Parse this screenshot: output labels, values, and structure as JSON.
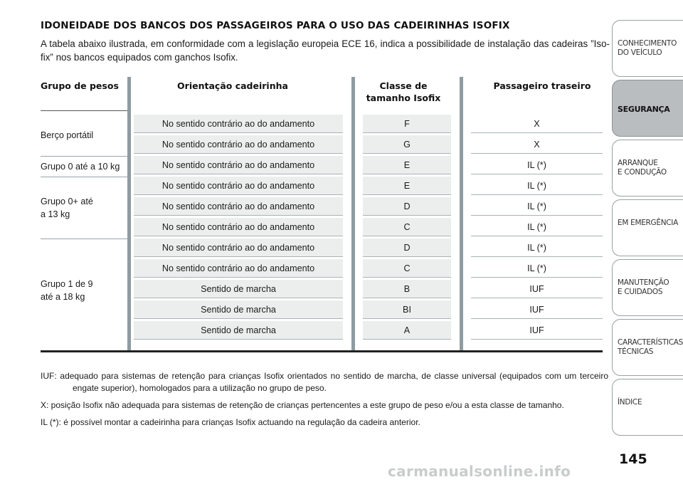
{
  "title": "IDONEIDADE DOS BANCOS DOS PASSAGEIROS PARA O USO DAS CADEIRINHAS ISOFIX",
  "intro": "A tabela abaixo ilustrada, em conformidade com a legislação europeia ECE 16, indica a possibilidade de instalação das cadeiras ”Iso-fix” nos bancos equipados com ganchos Isofix.",
  "table": {
    "headers": {
      "group": "Grupo de pesos",
      "orientation": "Orientação cadeirinha",
      "size_class": "Classe de tamanho Isofix",
      "rear_passenger": "Passageiro traseiro"
    },
    "groups": [
      "Berço portátil",
      "Grupo 0 até a 10 kg",
      "Grupo 0+ até a 13 kg",
      "Grupo 1 de 9 até a 18 kg"
    ],
    "rows": [
      {
        "orientation": "No sentido contrário ao do andamento",
        "size_class": "F",
        "rear": "X"
      },
      {
        "orientation": "No sentido contrário ao do andamento",
        "size_class": "G",
        "rear": "X"
      },
      {
        "orientation": "No sentido contrário ao do andamento",
        "size_class": "E",
        "rear": "IL (*)"
      },
      {
        "orientation": "No sentido contrário ao do andamento",
        "size_class": "E",
        "rear": "IL (*)"
      },
      {
        "orientation": "No sentido contrário ao do andamento",
        "size_class": "D",
        "rear": "IL (*)"
      },
      {
        "orientation": "No sentido contrário ao do andamento",
        "size_class": "C",
        "rear": "IL (*)"
      },
      {
        "orientation": "No sentido contrário ao do andamento",
        "size_class": "D",
        "rear": "IL (*)"
      },
      {
        "orientation": "No sentido contrário ao do andamento",
        "size_class": "C",
        "rear": "IL (*)"
      },
      {
        "orientation": "Sentido de marcha",
        "size_class": "B",
        "rear": "IUF"
      },
      {
        "orientation": "Sentido de marcha",
        "size_class": "BI",
        "rear": "IUF"
      },
      {
        "orientation": "Sentido de marcha",
        "size_class": "A",
        "rear": "IUF"
      }
    ]
  },
  "notes": [
    "IUF: adequado para sistemas de retenção para crianças Isofix orientados no sentido de marcha, de classe universal (equipados com um terceiro engate superior), homologados para a utilização no grupo de peso.",
    "X: posição Isofix não adequada para sistemas de retenção de crianças pertencentes a este grupo de peso e/ou a esta classe de tamanho.",
    "IL (*): é possível montar a cadeirinha para crianças Isofix actuando na regulação da cadeira anterior."
  ],
  "sidebar": {
    "items": [
      {
        "line1": "CONHECIMENTO",
        "line2": "DO VEÍCULO"
      },
      {
        "line1": "SEGURANÇA",
        "line2": ""
      },
      {
        "line1": "ARRANQUE",
        "line2": "E CONDUÇÃO"
      },
      {
        "line1": "EM EMERGÊNCIA",
        "line2": ""
      },
      {
        "line1": "MANUTENÇÃO",
        "line2": "E CUIDADOS"
      },
      {
        "line1": "CARACTERÍSTICAS",
        "line2": "TÉCNICAS"
      },
      {
        "line1": "ÍNDICE",
        "line2": ""
      }
    ],
    "active_index": 1
  },
  "page_number": "145",
  "watermark": "carmanualsonline.info"
}
